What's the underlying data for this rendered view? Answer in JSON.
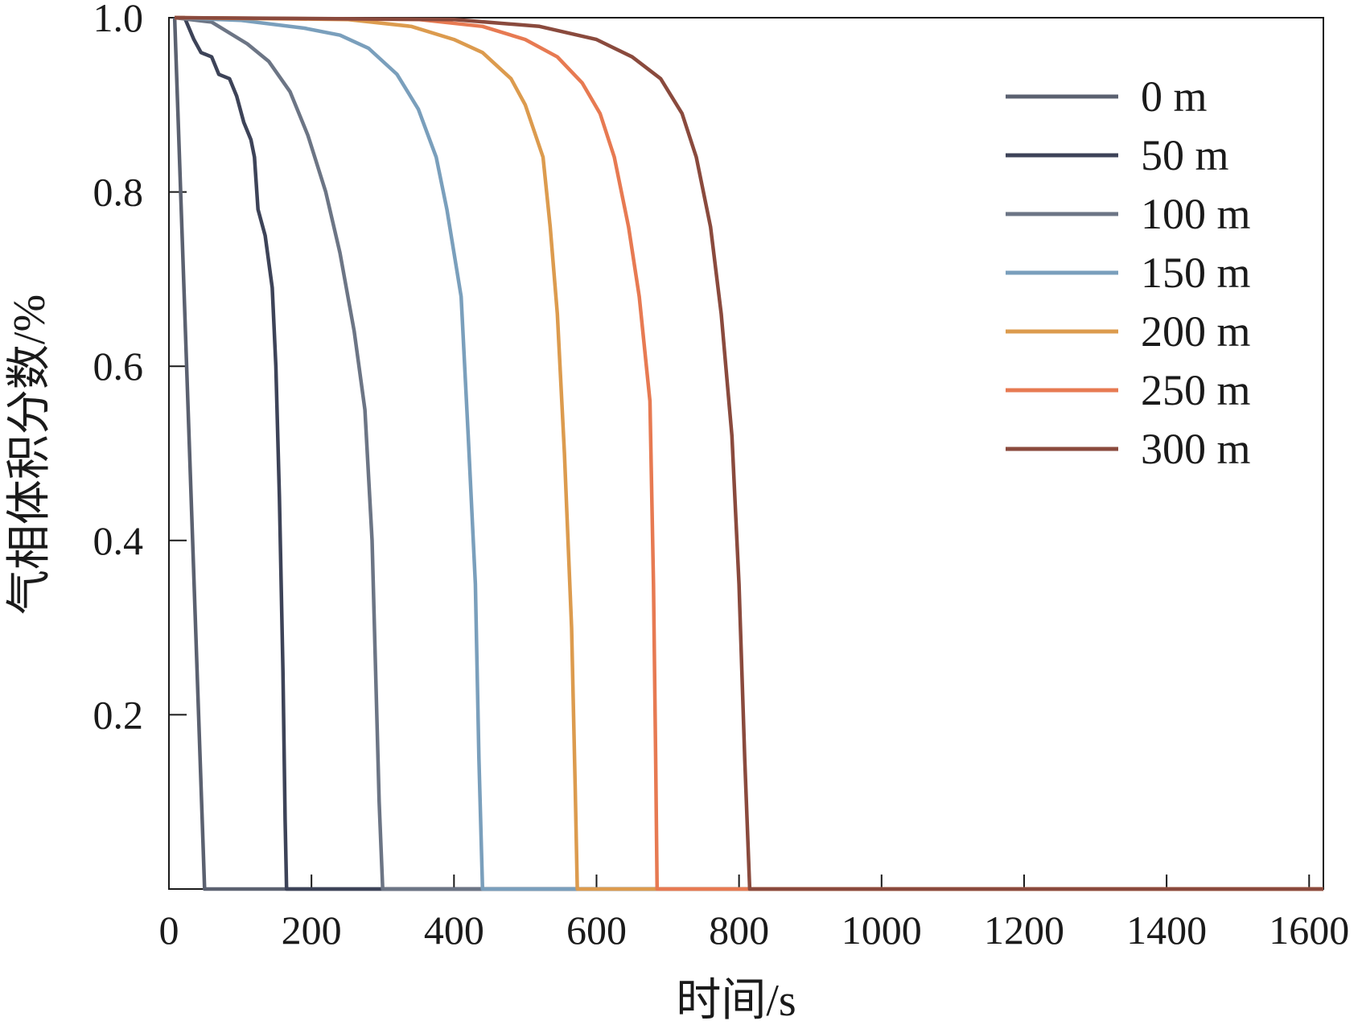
{
  "chart_data": {
    "type": "line",
    "xlabel": "时间/s",
    "ylabel": "气相体积分数/%",
    "xlim": [
      0,
      1620
    ],
    "ylim": [
      0,
      1.0
    ],
    "x_ticks": [
      0,
      200,
      400,
      600,
      800,
      1000,
      1200,
      1400,
      1600
    ],
    "x_tick_labels": [
      "0",
      "200",
      "400",
      "600",
      "800",
      "1000",
      "1200",
      "1400",
      "1600"
    ],
    "y_ticks": [
      0.2,
      0.4,
      0.6,
      0.8,
      1.0
    ],
    "y_tick_labels": [
      "0.2",
      "0.4",
      "0.6",
      "0.8",
      "1.0"
    ],
    "grid": false,
    "legend_position": "top-right",
    "series": [
      {
        "name": "0 m",
        "color": "#5b6170",
        "points": [
          [
            8,
            1.0
          ],
          [
            50,
            0.0
          ],
          [
            1620,
            0.0
          ]
        ]
      },
      {
        "name": "50 m",
        "color": "#3d4358",
        "points": [
          [
            8,
            1.0
          ],
          [
            22,
            1.0
          ],
          [
            35,
            0.975
          ],
          [
            45,
            0.96
          ],
          [
            60,
            0.955
          ],
          [
            70,
            0.935
          ],
          [
            85,
            0.93
          ],
          [
            95,
            0.91
          ],
          [
            105,
            0.88
          ],
          [
            115,
            0.86
          ],
          [
            120,
            0.84
          ],
          [
            125,
            0.78
          ],
          [
            135,
            0.75
          ],
          [
            140,
            0.72
          ],
          [
            145,
            0.69
          ],
          [
            150,
            0.6
          ],
          [
            155,
            0.45
          ],
          [
            160,
            0.25
          ],
          [
            163,
            0.08
          ],
          [
            165,
            0.0
          ],
          [
            1620,
            0.0
          ]
        ]
      },
      {
        "name": "100 m",
        "color": "#6c7585",
        "points": [
          [
            8,
            1.0
          ],
          [
            60,
            0.995
          ],
          [
            110,
            0.97
          ],
          [
            140,
            0.95
          ],
          [
            170,
            0.915
          ],
          [
            195,
            0.865
          ],
          [
            220,
            0.8
          ],
          [
            240,
            0.73
          ],
          [
            260,
            0.64
          ],
          [
            275,
            0.55
          ],
          [
            285,
            0.4
          ],
          [
            290,
            0.25
          ],
          [
            295,
            0.1
          ],
          [
            300,
            0.0
          ],
          [
            1620,
            0.0
          ]
        ]
      },
      {
        "name": "150 m",
        "color": "#7a9fbc",
        "points": [
          [
            8,
            1.0
          ],
          [
            100,
            0.997
          ],
          [
            190,
            0.988
          ],
          [
            240,
            0.98
          ],
          [
            280,
            0.965
          ],
          [
            320,
            0.935
          ],
          [
            350,
            0.895
          ],
          [
            375,
            0.84
          ],
          [
            390,
            0.78
          ],
          [
            410,
            0.68
          ],
          [
            420,
            0.52
          ],
          [
            430,
            0.35
          ],
          [
            435,
            0.15
          ],
          [
            440,
            0.0
          ],
          [
            1620,
            0.0
          ]
        ]
      },
      {
        "name": "200 m",
        "color": "#dc9b4e",
        "points": [
          [
            8,
            1.0
          ],
          [
            250,
            0.998
          ],
          [
            340,
            0.99
          ],
          [
            400,
            0.975
          ],
          [
            440,
            0.96
          ],
          [
            480,
            0.93
          ],
          [
            500,
            0.9
          ],
          [
            525,
            0.84
          ],
          [
            535,
            0.76
          ],
          [
            545,
            0.66
          ],
          [
            555,
            0.5
          ],
          [
            565,
            0.3
          ],
          [
            570,
            0.12
          ],
          [
            573,
            0.0
          ],
          [
            1620,
            0.0
          ]
        ]
      },
      {
        "name": "250 m",
        "color": "#e77a52",
        "points": [
          [
            8,
            1.0
          ],
          [
            350,
            0.998
          ],
          [
            440,
            0.99
          ],
          [
            500,
            0.975
          ],
          [
            545,
            0.955
          ],
          [
            580,
            0.925
          ],
          [
            605,
            0.89
          ],
          [
            625,
            0.84
          ],
          [
            645,
            0.76
          ],
          [
            660,
            0.68
          ],
          [
            675,
            0.56
          ],
          [
            680,
            0.35
          ],
          [
            683,
            0.15
          ],
          [
            685,
            0.0
          ],
          [
            1620,
            0.0
          ]
        ]
      },
      {
        "name": "300 m",
        "color": "#8a4a3d",
        "points": [
          [
            8,
            1.0
          ],
          [
            400,
            0.998
          ],
          [
            520,
            0.99
          ],
          [
            600,
            0.975
          ],
          [
            650,
            0.955
          ],
          [
            690,
            0.93
          ],
          [
            720,
            0.89
          ],
          [
            740,
            0.84
          ],
          [
            760,
            0.76
          ],
          [
            775,
            0.66
          ],
          [
            790,
            0.52
          ],
          [
            800,
            0.35
          ],
          [
            808,
            0.15
          ],
          [
            815,
            0.0
          ],
          [
            1620,
            0.0
          ]
        ]
      }
    ]
  }
}
